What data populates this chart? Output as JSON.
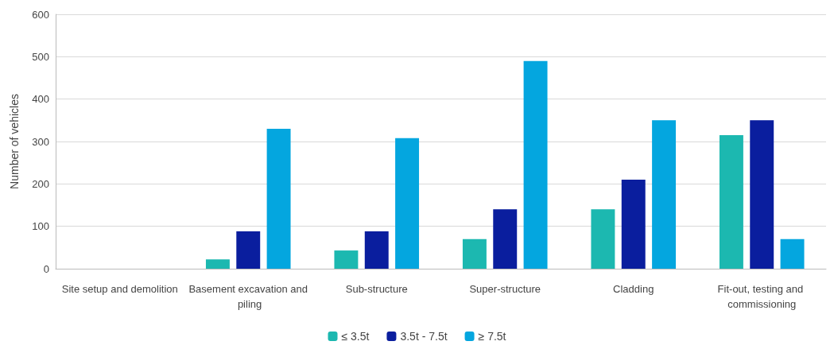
{
  "chart_data": {
    "type": "bar",
    "ylabel": "Number of vehicles",
    "categories": [
      "Site setup and demolition",
      "Basement excavation and piling",
      "Sub-structure",
      "Super-structure",
      "Cladding",
      "Fit-out, testing and commissioning"
    ],
    "series": [
      {
        "name": "≤ 3.5t",
        "color": "#1cb8b0",
        "values": [
          0,
          22,
          43,
          70,
          140,
          315
        ]
      },
      {
        "name": "3.5t - 7.5t",
        "color": "#0a1e9e",
        "values": [
          0,
          88,
          88,
          140,
          210,
          350
        ]
      },
      {
        "name": "≥ 7.5t",
        "color": "#04a6df",
        "values": [
          0,
          330,
          308,
          490,
          350,
          70
        ]
      }
    ],
    "ylim": [
      0,
      600
    ],
    "yticks": [
      0,
      100,
      200,
      300,
      400,
      500,
      600
    ],
    "grid": "y",
    "legend": "bottom"
  }
}
